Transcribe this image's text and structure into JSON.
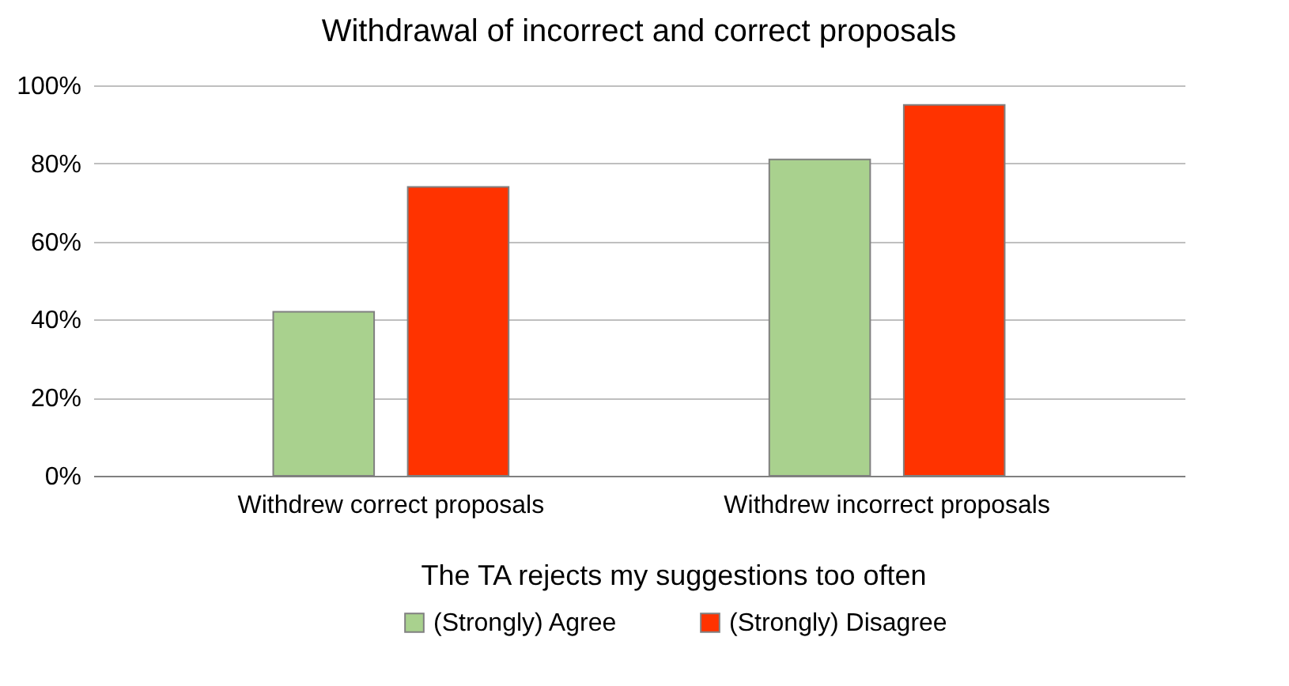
{
  "chart_data": {
    "type": "bar",
    "title": "Withdrawal of incorrect and correct proposals",
    "legend_title": "The TA rejects my suggestions too often",
    "categories": [
      "Withdrew correct proposals",
      "Withdrew incorrect proposals"
    ],
    "series": [
      {
        "name": "(Strongly) Agree",
        "color": "#a9d18e",
        "values": [
          42,
          81
        ]
      },
      {
        "name": "(Strongly) Disagree",
        "color": "#ff3300",
        "values": [
          74,
          95
        ]
      }
    ],
    "ylim": [
      0,
      100
    ],
    "yticks": [
      {
        "value": 0,
        "label": "0%"
      },
      {
        "value": 20,
        "label": "20%"
      },
      {
        "value": 40,
        "label": "40%"
      },
      {
        "value": 60,
        "label": "60%"
      },
      {
        "value": 80,
        "label": "80%"
      },
      {
        "value": 100,
        "label": "100%"
      }
    ],
    "grid": "y",
    "legend": "bottom"
  }
}
